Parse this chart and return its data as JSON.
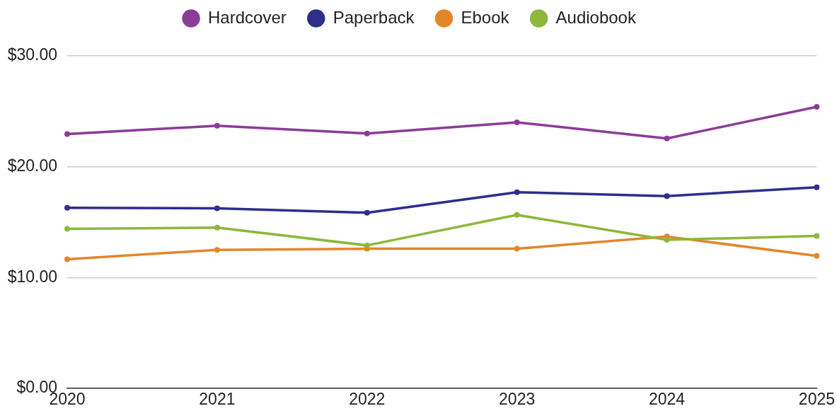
{
  "chart_data": {
    "type": "line",
    "categories": [
      "2020",
      "2021",
      "2022",
      "2023",
      "2024",
      "2025"
    ],
    "series": [
      {
        "name": "Hardcover",
        "color": "#8b3c97",
        "values": [
          22.95,
          23.7,
          23.0,
          24.0,
          22.55,
          25.4
        ]
      },
      {
        "name": "Paperback",
        "color": "#2e2e8b",
        "values": [
          16.3,
          16.25,
          15.85,
          17.7,
          17.35,
          18.15
        ]
      },
      {
        "name": "Ebook",
        "color": "#e3862a",
        "values": [
          11.65,
          12.5,
          12.6,
          12.6,
          13.7,
          11.95
        ]
      },
      {
        "name": "Audiobook",
        "color": "#8cb83b",
        "values": [
          14.4,
          14.5,
          12.9,
          15.65,
          13.4,
          13.75
        ]
      }
    ],
    "ylim": [
      0,
      30
    ],
    "yticks": [
      {
        "value": 0,
        "label": "$0.00"
      },
      {
        "value": 10,
        "label": "$10.00"
      },
      {
        "value": 20,
        "label": "$20.00"
      },
      {
        "value": 30,
        "label": "$30.00"
      }
    ],
    "grid": "y",
    "legend": "top",
    "marker": "circle",
    "line_style": "solid"
  }
}
